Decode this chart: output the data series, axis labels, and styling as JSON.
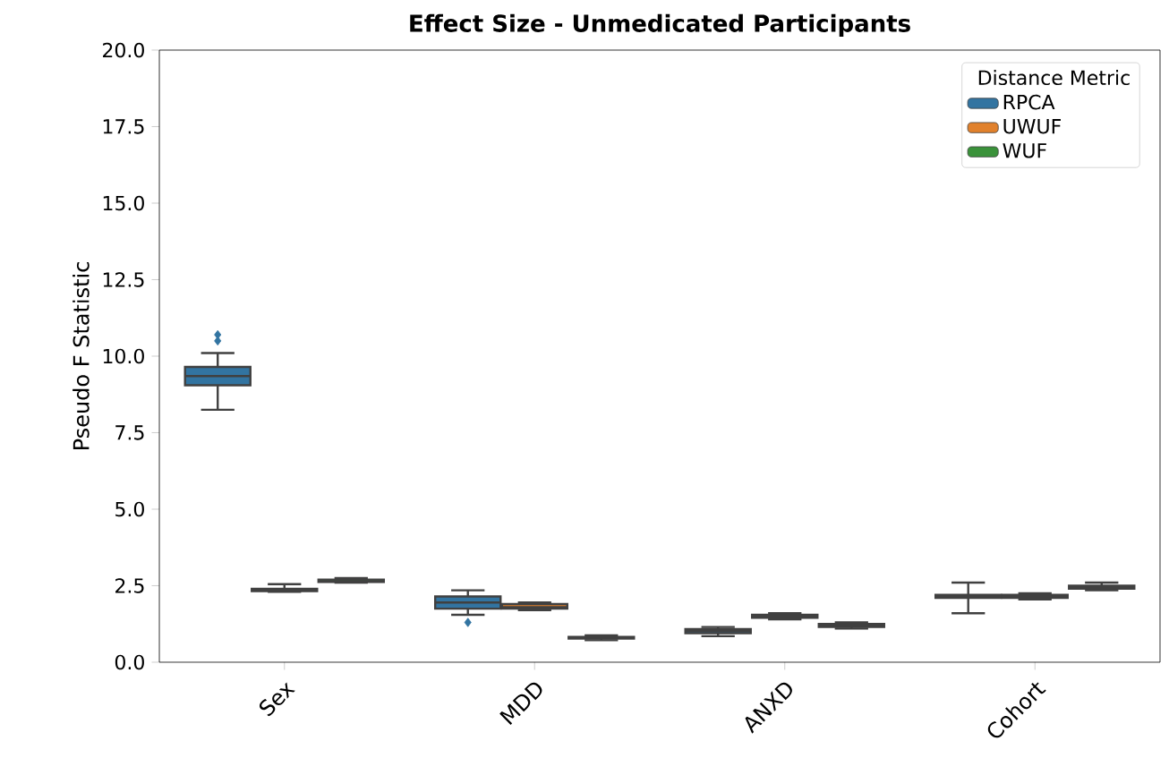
{
  "chart_data": {
    "type": "box",
    "title": "Effect Size - Unmedicated Participants",
    "ylabel": "Pseudo F Statistic",
    "legend_title": "Distance Metric",
    "legend": "top right",
    "categories": [
      "Sex",
      "MDD",
      "ANXD",
      "Cohort"
    ],
    "ylim": [
      0,
      20
    ],
    "yticks": [
      {
        "value": 0,
        "label": "0.0"
      },
      {
        "value": 2.5,
        "label": "2.5"
      },
      {
        "value": 5,
        "label": "5.0"
      },
      {
        "value": 7.5,
        "label": "7.5"
      },
      {
        "value": 10,
        "label": "10.0"
      },
      {
        "value": 12.5,
        "label": "12.5"
      },
      {
        "value": 15,
        "label": "15.0"
      },
      {
        "value": 17.5,
        "label": "17.5"
      },
      {
        "value": 20,
        "label": "20.0"
      }
    ],
    "marker": "diamond",
    "series": [
      {
        "name": "RPCA",
        "color": "#3274a1",
        "boxes": [
          {
            "low": 8.25,
            "q1": 9.05,
            "median": 9.35,
            "q3": 9.65,
            "high": 10.1,
            "outliers": [
              10.7,
              10.5
            ]
          },
          {
            "low": 1.55,
            "q1": 1.75,
            "median": 1.95,
            "q3": 2.15,
            "high": 2.35,
            "outliers": [
              1.3
            ]
          },
          {
            "low": 0.85,
            "q1": 0.95,
            "median": 1.02,
            "q3": 1.08,
            "high": 1.15
          },
          {
            "low": 1.6,
            "q1": 2.1,
            "median": 2.15,
            "q3": 2.2,
            "high": 2.6
          }
        ]
      },
      {
        "name": "UWUF",
        "color": "#e1812c",
        "boxes": [
          {
            "low": 2.3,
            "q1": 2.32,
            "median": 2.35,
            "q3": 2.4,
            "high": 2.55
          },
          {
            "low": 1.7,
            "q1": 1.75,
            "median": 1.8,
            "q3": 1.9,
            "high": 1.95
          },
          {
            "low": 1.4,
            "q1": 1.45,
            "median": 1.5,
            "q3": 1.55,
            "high": 1.6
          },
          {
            "low": 2.05,
            "q1": 2.1,
            "median": 2.15,
            "q3": 2.2,
            "high": 2.25
          }
        ]
      },
      {
        "name": "WUF",
        "color": "#3a923a",
        "boxes": [
          {
            "low": 2.6,
            "q1": 2.62,
            "median": 2.65,
            "q3": 2.7,
            "high": 2.75
          },
          {
            "low": 0.72,
            "q1": 0.77,
            "median": 0.8,
            "q3": 0.83,
            "high": 0.88
          },
          {
            "low": 1.1,
            "q1": 1.15,
            "median": 1.2,
            "q3": 1.25,
            "high": 1.3
          },
          {
            "low": 2.35,
            "q1": 2.4,
            "median": 2.45,
            "q3": 2.5,
            "high": 2.6
          }
        ]
      }
    ]
  }
}
